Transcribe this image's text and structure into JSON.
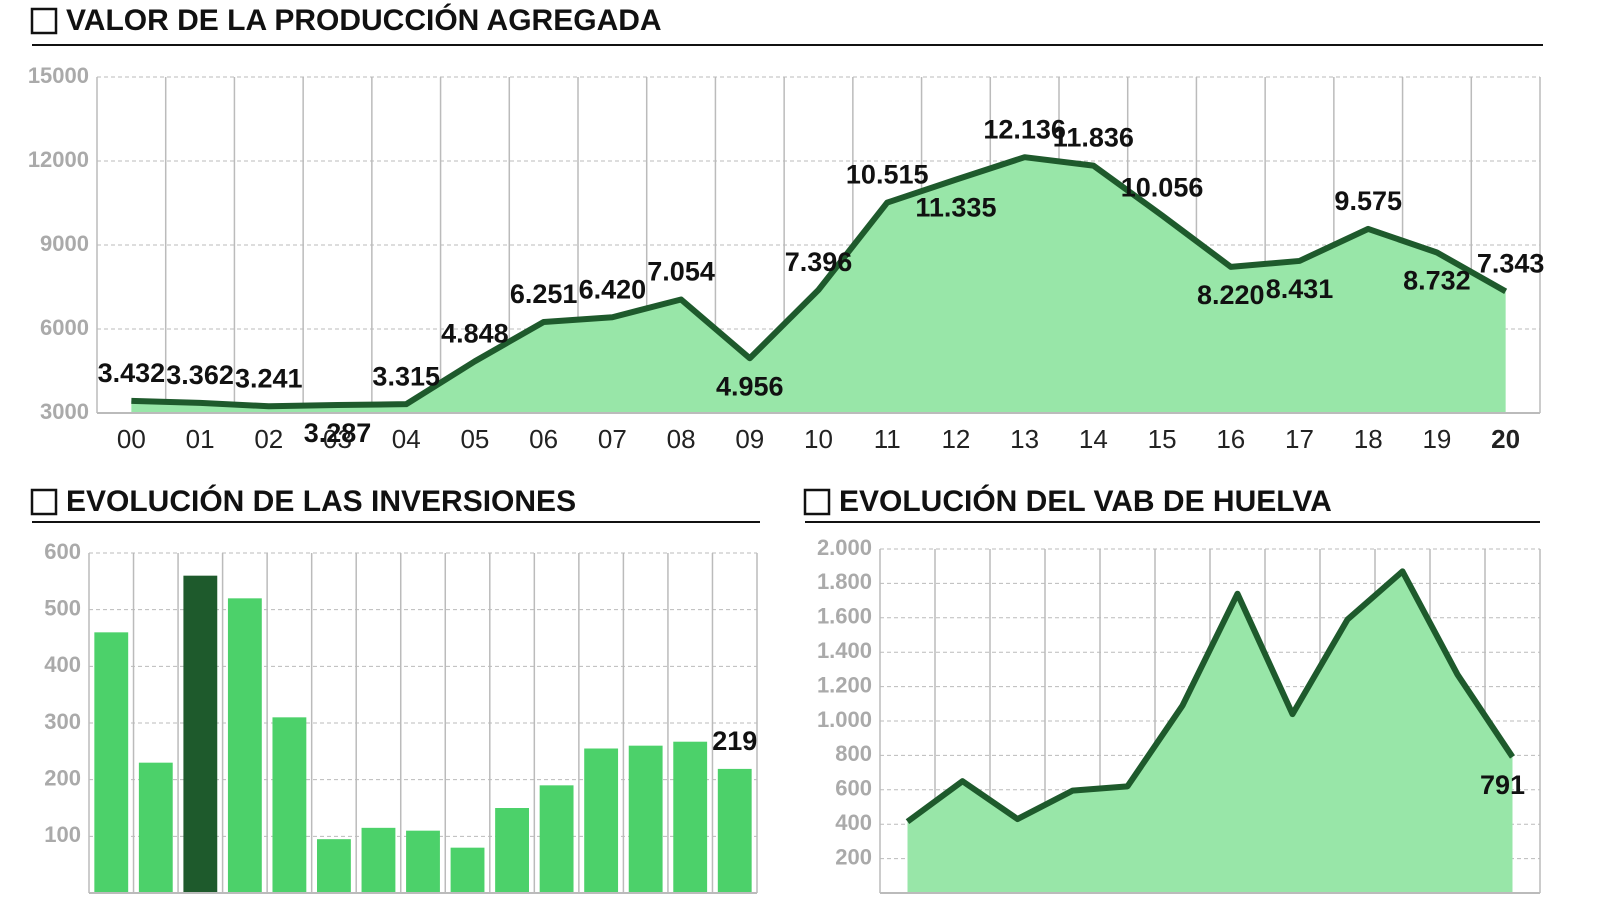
{
  "chart_data": [
    {
      "type": "area",
      "title": "VALOR DE LA PRODUCCIÓN AGREGADA",
      "categories": [
        "00",
        "01",
        "02",
        "03",
        "04",
        "05",
        "06",
        "07",
        "08",
        "09",
        "10",
        "11",
        "12",
        "13",
        "14",
        "15",
        "16",
        "17",
        "18",
        "19",
        "20"
      ],
      "values": [
        3432,
        3362,
        3241,
        3287,
        3315,
        4848,
        6251,
        6420,
        7054,
        4956,
        7396,
        10515,
        11335,
        12136,
        11836,
        10056,
        8220,
        8431,
        9575,
        8732,
        7343
      ],
      "value_labels": [
        "3.432",
        "3.362",
        "3.241",
        "3.287",
        "3.315",
        "4.848",
        "6.251",
        "6.420",
        "7.054",
        "4.956",
        "7.396",
        "10.515",
        "11.335",
        "12.136",
        "11.836",
        "10.056",
        "8.220",
        "8.431",
        "9.575",
        "8.732",
        "7.343"
      ],
      "ylim": [
        3000,
        15000
      ],
      "yticks": [
        3000,
        6000,
        9000,
        12000,
        15000
      ],
      "color": "#1e5a2c",
      "fill": "#98e6a8",
      "grid": true,
      "highlight_last": true
    },
    {
      "type": "bar",
      "title": "EVOLUCIÓN DE LAS INVERSIONES",
      "values": [
        460,
        230,
        560,
        520,
        310,
        95,
        115,
        110,
        80,
        150,
        190,
        255,
        260,
        267,
        219
      ],
      "colors": [
        "#4cd16a",
        "#4cd16a",
        "#1e5a2c",
        "#4cd16a",
        "#4cd16a",
        "#4cd16a",
        "#4cd16a",
        "#4cd16a",
        "#4cd16a",
        "#4cd16a",
        "#4cd16a",
        "#4cd16a",
        "#4cd16a",
        "#4cd16a",
        "#4cd16a"
      ],
      "ylim": [
        0,
        600
      ],
      "yticks": [
        100,
        200,
        300,
        400,
        500,
        600
      ],
      "grid": true,
      "label_last": true
    },
    {
      "type": "area",
      "title": "EVOLUCIÓN DEL VAB DE HUELVA",
      "values": [
        415,
        650,
        430,
        595,
        620,
        1090,
        1740,
        1040,
        1590,
        1870,
        1270,
        791
      ],
      "ylim": [
        0,
        2000
      ],
      "yticks": [
        200,
        400,
        600,
        800,
        {
          "value": 1000,
          "label": "1.000"
        },
        {
          "value": 1200,
          "label": "1.200"
        },
        {
          "value": 1400,
          "label": "1.400"
        },
        {
          "value": 1600,
          "label": "1.600"
        },
        {
          "value": 1800,
          "label": "1.800"
        },
        {
          "value": 2000,
          "label": "2.000"
        }
      ],
      "color": "#1e5a2c",
      "fill": "#98e6a8",
      "grid": true,
      "label_last": true
    }
  ]
}
